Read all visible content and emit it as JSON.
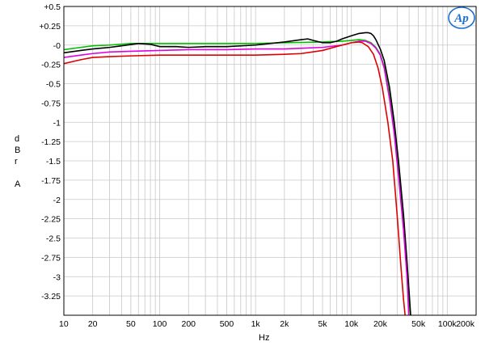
{
  "chart_data": {
    "type": "line",
    "title": "",
    "xlabel": "Hz",
    "ylabel_letters": [
      "d",
      "B",
      "r",
      "",
      "A"
    ],
    "xscale": "log",
    "xlim": [
      10,
      200000
    ],
    "ylim": [
      -3.5,
      0.5
    ],
    "grid": true,
    "legend": "none",
    "logo": "Ap",
    "x_ticks": [
      10,
      20,
      50,
      100,
      200,
      500,
      1000,
      2000,
      5000,
      10000,
      20000,
      50000,
      100000,
      200000
    ],
    "x_tick_labels": [
      "10",
      "20",
      "50",
      "100",
      "200",
      "500",
      "1k",
      "2k",
      "5k",
      "10k",
      "20k",
      "50k",
      "100k",
      "200k"
    ],
    "y_ticks": [
      0.5,
      0.25,
      0,
      -0.25,
      -0.5,
      -0.75,
      -1,
      -1.25,
      -1.5,
      -1.75,
      -2,
      -2.25,
      -2.5,
      -2.75,
      -3,
      -3.25
    ],
    "y_tick_labels": [
      "+0.5",
      "+0.25",
      "-0",
      "-0.25",
      "-0.5",
      "-0.75",
      "-1",
      "-1.25",
      "-1.5",
      "-1.75",
      "-2",
      "-2.25",
      "-2.5",
      "-2.75",
      "-3",
      "-3.25"
    ],
    "series": [
      {
        "color": "#00c000",
        "x": [
          10,
          15,
          20,
          30,
          50,
          100,
          200,
          500,
          1000,
          2000,
          5000,
          8000,
          10000,
          12000,
          14000,
          16000,
          18000,
          20000,
          22000,
          25000,
          28000,
          31000,
          35000,
          38000,
          40000,
          42000
        ],
        "y": [
          -0.06,
          -0.03,
          -0.01,
          0.0,
          0.02,
          0.02,
          0.02,
          0.02,
          0.02,
          0.03,
          0.04,
          0.05,
          0.06,
          0.07,
          0.06,
          0.03,
          -0.03,
          -0.12,
          -0.28,
          -0.65,
          -1.1,
          -1.6,
          -2.3,
          -2.9,
          -3.3,
          -3.6
        ]
      },
      {
        "color": "#000000",
        "x": [
          10,
          15,
          20,
          30,
          40,
          60,
          80,
          100,
          150,
          200,
          300,
          500,
          1000,
          2000,
          3000,
          3500,
          4000,
          5000,
          6000,
          7000,
          8000,
          10000,
          12000,
          14000,
          15000,
          16000,
          17000,
          18000,
          20000,
          22000,
          25000,
          28000,
          31000,
          35000,
          38000,
          40000,
          42000
        ],
        "y": [
          -0.1,
          -0.07,
          -0.05,
          -0.03,
          -0.01,
          0.02,
          0.01,
          -0.02,
          -0.02,
          -0.03,
          -0.02,
          -0.02,
          0.0,
          0.04,
          0.07,
          0.08,
          0.06,
          0.03,
          0.03,
          0.05,
          0.08,
          0.12,
          0.15,
          0.16,
          0.16,
          0.15,
          0.12,
          0.07,
          -0.05,
          -0.2,
          -0.55,
          -1.0,
          -1.5,
          -2.2,
          -2.8,
          -3.2,
          -3.6
        ]
      },
      {
        "color": "#e000e0",
        "x": [
          10,
          15,
          20,
          30,
          50,
          100,
          200,
          500,
          1000,
          2000,
          5000,
          8000,
          10000,
          12000,
          14000,
          16000,
          18000,
          20000,
          22000,
          25000,
          28000,
          31000,
          35000,
          38000,
          40000
        ],
        "y": [
          -0.16,
          -0.13,
          -0.11,
          -0.09,
          -0.08,
          -0.07,
          -0.06,
          -0.06,
          -0.05,
          -0.05,
          -0.03,
          0.0,
          0.03,
          0.05,
          0.05,
          0.02,
          -0.04,
          -0.13,
          -0.3,
          -0.7,
          -1.15,
          -1.7,
          -2.4,
          -3.0,
          -3.6
        ]
      },
      {
        "color": "#e00000",
        "x": [
          10,
          15,
          20,
          30,
          50,
          100,
          200,
          500,
          1000,
          2000,
          3000,
          5000,
          7000,
          10000,
          12000,
          13000,
          15000,
          17000,
          19000,
          21000,
          24000,
          27000,
          30000,
          33000,
          35000,
          37000
        ],
        "y": [
          -0.24,
          -0.19,
          -0.16,
          -0.15,
          -0.14,
          -0.13,
          -0.13,
          -0.13,
          -0.13,
          -0.12,
          -0.11,
          -0.07,
          -0.02,
          0.03,
          0.04,
          0.03,
          -0.02,
          -0.12,
          -0.3,
          -0.55,
          -1.0,
          -1.5,
          -2.2,
          -2.9,
          -3.3,
          -3.6
        ]
      }
    ]
  }
}
